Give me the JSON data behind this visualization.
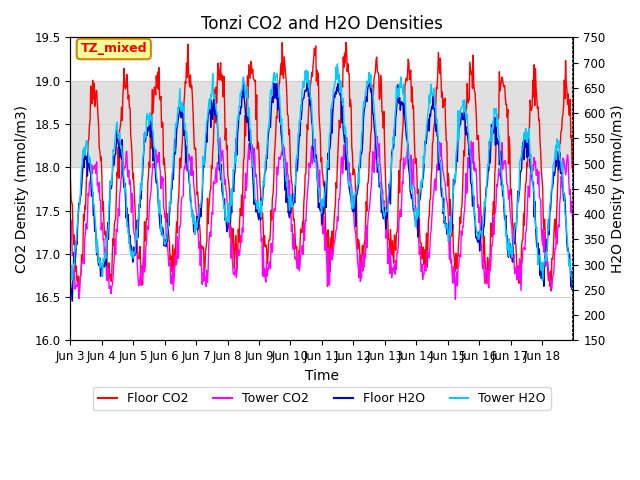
{
  "title": "Tonzi CO2 and H2O Densities",
  "xlabel": "Time",
  "ylabel_left": "CO2 Density (mmol/m3)",
  "ylabel_right": "H2O Density (mmol/m3)",
  "ylim_left": [
    16.0,
    19.5
  ],
  "ylim_right": [
    150,
    750
  ],
  "yticks_left": [
    16.0,
    16.5,
    17.0,
    17.5,
    18.0,
    18.5,
    19.0,
    19.5
  ],
  "yticks_right": [
    150,
    200,
    250,
    300,
    350,
    400,
    450,
    500,
    550,
    600,
    650,
    700,
    750
  ],
  "xtick_labels": [
    "Jun 3",
    "Jun 4",
    "Jun 5",
    "Jun 6",
    "Jun 7",
    "Jun 8",
    "Jun 9",
    "Jun 10",
    "Jun 11",
    "Jun 12",
    "Jun 13",
    "Jun 14",
    "Jun 15",
    "Jun 16",
    "Jun 17",
    "Jun 18"
  ],
  "n_days": 16,
  "points_per_day": 48,
  "legend_labels": [
    "Floor CO2",
    "Tower CO2",
    "Floor H2O",
    "Tower H2O"
  ],
  "legend_colors": [
    "#ff0000",
    "#ff00ff",
    "#0000cc",
    "#00ccff"
  ],
  "annotation_text": "TZ_mixed",
  "annotation_bg": "#ffff99",
  "annotation_border": "#cc8800",
  "shaded_region": [
    18.0,
    19.0
  ],
  "shaded_color": "#e0e0e0",
  "background_color": "#ffffff",
  "grid_color": "#d0d0d0",
  "title_fontsize": 12,
  "axis_fontsize": 10,
  "tick_fontsize": 8.5
}
